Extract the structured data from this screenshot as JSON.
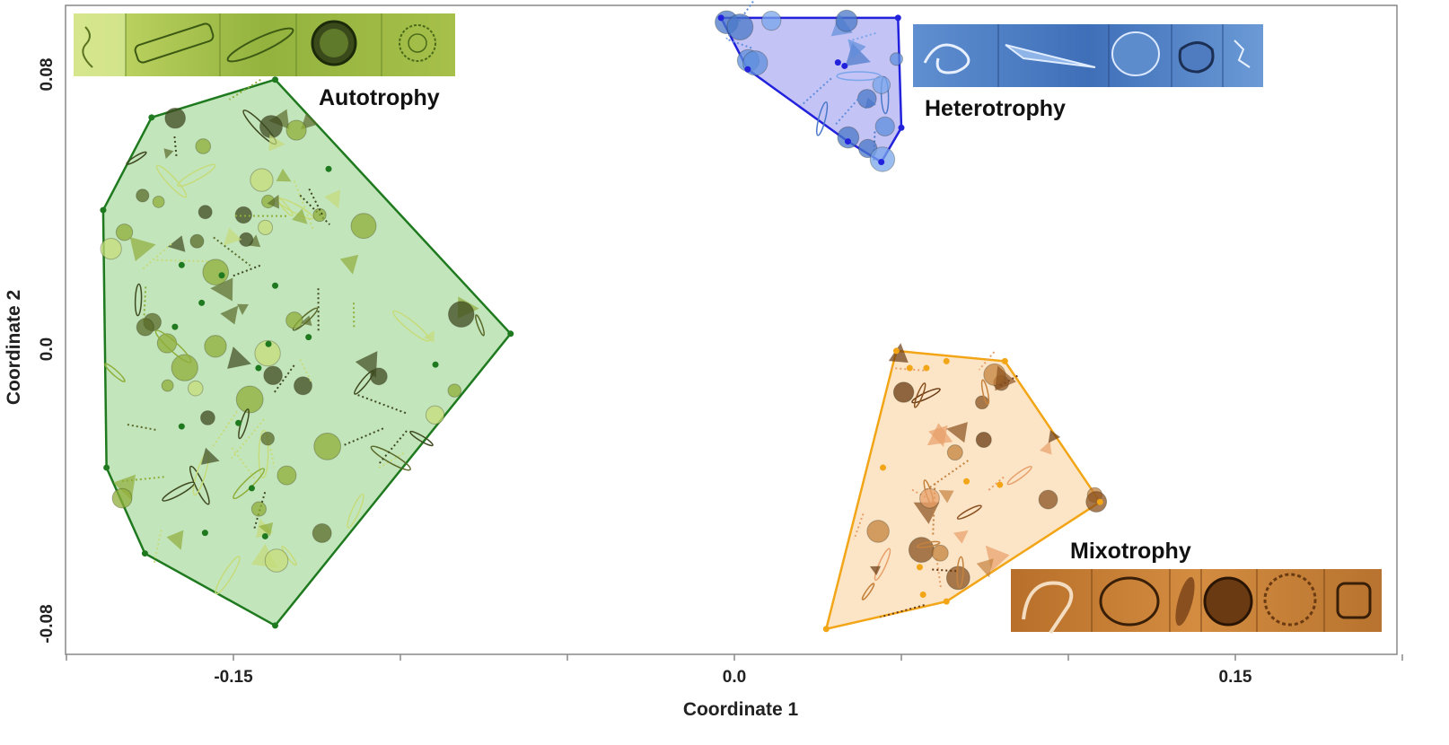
{
  "chart_data": {
    "type": "scatter",
    "title": "",
    "xlabel": "Coordinate 1",
    "ylabel": "Coordinate 2",
    "xlim": [
      -0.2,
      0.2
    ],
    "ylim": [
      -0.09,
      0.1
    ],
    "x_ticks": [
      -0.15,
      0.0,
      0.15
    ],
    "x_tick_labels": [
      "-0.15",
      "0.0",
      "0.15"
    ],
    "y_ticks": [
      0.08,
      0.0,
      -0.08
    ],
    "y_tick_labels": [
      "0.08",
      "0.0",
      "-0.08"
    ],
    "grid": false,
    "legend": "none",
    "colors": {
      "Autotrophy": "#1f7a1f",
      "Heterotrophy": "#2222dd",
      "Mixotrophy": "#f2a516"
    },
    "fills": {
      "Autotrophy": "#b8e0b0",
      "Heterotrophy": "#b8b8f5",
      "Mixotrophy": "#fbe0bd"
    },
    "series": [
      {
        "name": "Autotrophy",
        "hull": [
          [
            -0.1375,
            0.0785
          ],
          [
            -0.1745,
            0.0675
          ],
          [
            -0.189,
            0.0405
          ],
          [
            -0.188,
            -0.0345
          ],
          [
            -0.1765,
            -0.0595
          ],
          [
            -0.1375,
            -0.0805
          ],
          [
            -0.067,
            0.0045
          ]
        ],
        "points": [
          [
            -0.1675,
            0.0065
          ],
          [
            -0.1655,
            0.0245
          ],
          [
            -0.1535,
            0.0215
          ],
          [
            -0.1375,
            0.0185
          ],
          [
            -0.1595,
            0.0135
          ],
          [
            -0.1395,
            0.0015
          ],
          [
            -0.1215,
            0.0525
          ],
          [
            -0.1275,
            0.0035
          ],
          [
            -0.0895,
            -0.0045
          ],
          [
            -0.1485,
            -0.0215
          ],
          [
            -0.1445,
            -0.0405
          ],
          [
            -0.1585,
            -0.0535
          ],
          [
            -0.1405,
            -0.0545
          ],
          [
            -0.1655,
            -0.0225
          ],
          [
            -0.1425,
            -0.0055
          ]
        ]
      },
      {
        "name": "Heterotrophy",
        "hull": [
          [
            -0.004,
            0.0965
          ],
          [
            0.049,
            0.0965
          ],
          [
            0.05,
            0.0645
          ],
          [
            0.044,
            0.0545
          ],
          [
            0.034,
            0.0605
          ],
          [
            0.004,
            0.0815
          ]
        ],
        "points": [
          [
            0.033,
            0.0825
          ],
          [
            0.031,
            0.0835
          ]
        ]
      },
      {
        "name": "Mixotrophy",
        "hull": [
          [
            0.0485,
            -0.0005
          ],
          [
            0.081,
            -0.0035
          ],
          [
            0.1095,
            -0.0445
          ],
          [
            0.0635,
            -0.0735
          ],
          [
            0.0275,
            -0.0815
          ]
        ],
        "points": [
          [
            0.0525,
            -0.0055
          ],
          [
            0.0575,
            -0.0055
          ],
          [
            0.0635,
            -0.0035
          ],
          [
            0.0445,
            -0.0345
          ],
          [
            0.0695,
            -0.0385
          ],
          [
            0.0555,
            -0.0635
          ],
          [
            0.0565,
            -0.0715
          ],
          [
            0.0795,
            -0.0395
          ]
        ]
      }
    ],
    "annotations": [
      "Autotrophy",
      "Heterotrophy",
      "Mixotrophy"
    ]
  }
}
